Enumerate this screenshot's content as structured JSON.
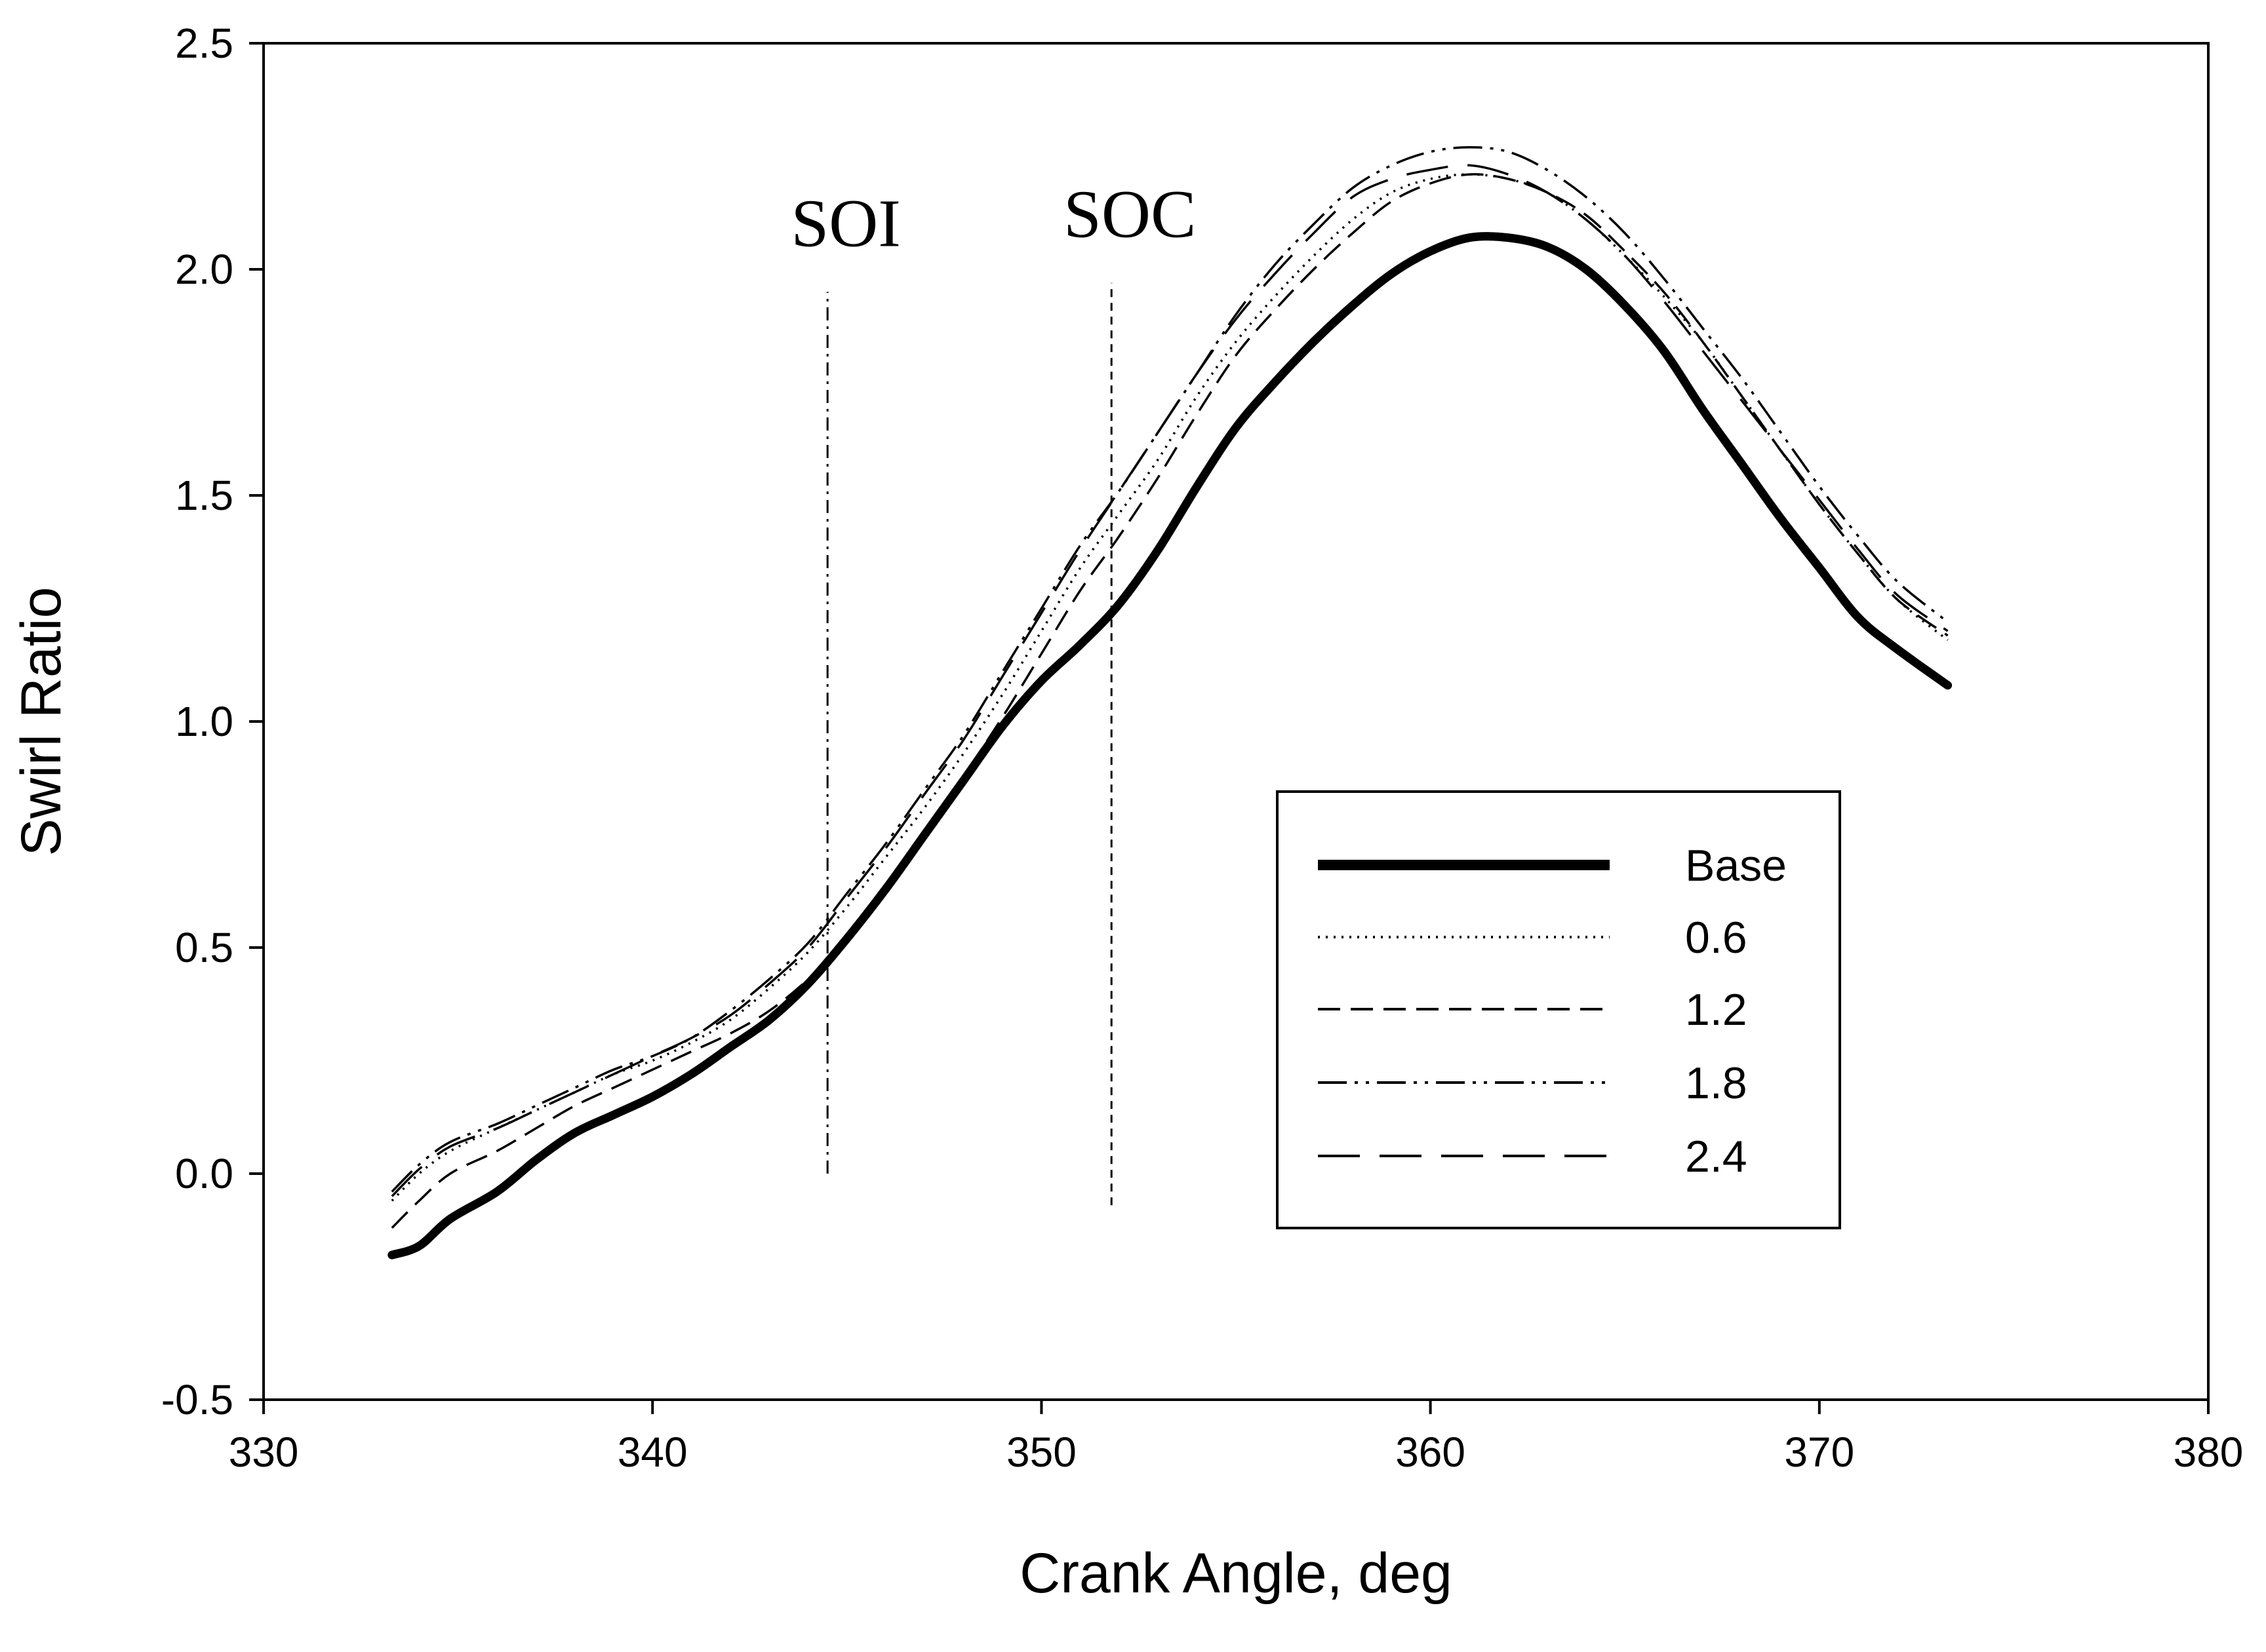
{
  "chart_data": {
    "type": "line",
    "title": "",
    "xlabel": "Crank Angle, deg",
    "ylabel": "Swirl Ratio",
    "xlim": [
      330,
      380
    ],
    "ylim": [
      -0.5,
      2.5
    ],
    "xticks": [
      330,
      340,
      350,
      360,
      370,
      380
    ],
    "yticks": [
      -0.5,
      0.0,
      0.5,
      1.0,
      1.5,
      2.0,
      2.5
    ],
    "xtick_labels": [
      "330",
      "340",
      "350",
      "360",
      "370",
      "380"
    ],
    "ytick_labels": [
      "-0.5",
      "0.0",
      "0.5",
      "1.0",
      "1.5",
      "2.0",
      "2.5"
    ],
    "grid": false,
    "legend_position": "lower-right",
    "annotations": [
      {
        "label": "SOI",
        "x": 344.5,
        "y_range": [
          0.0,
          1.95
        ],
        "style": "dash-dot"
      },
      {
        "label": "SOC",
        "x": 351.8,
        "y_range": [
          -0.07,
          1.97
        ],
        "style": "dashed"
      }
    ],
    "x": [
      333.3,
      334,
      334.8,
      336,
      337,
      338,
      339,
      340,
      341,
      342,
      343,
      344,
      345,
      346,
      347,
      348,
      349,
      350,
      351,
      352,
      353,
      354,
      355,
      356,
      357,
      358,
      359,
      360,
      361,
      362,
      363,
      364,
      365,
      366,
      367,
      368,
      369,
      370,
      371,
      372,
      373.3
    ],
    "series": [
      {
        "name": "Base",
        "values": [
          -0.18,
          -0.16,
          -0.1,
          -0.04,
          0.03,
          0.09,
          0.13,
          0.17,
          0.22,
          0.28,
          0.34,
          0.42,
          0.52,
          0.63,
          0.75,
          0.87,
          0.99,
          1.09,
          1.17,
          1.26,
          1.38,
          1.52,
          1.65,
          1.75,
          1.84,
          1.92,
          1.99,
          2.04,
          2.07,
          2.07,
          2.05,
          2.0,
          1.92,
          1.82,
          1.69,
          1.57,
          1.45,
          1.34,
          1.23,
          1.16,
          1.08
        ]
      },
      {
        "name": "0.6",
        "values": [
          -0.06,
          0.0,
          0.05,
          0.1,
          0.14,
          0.18,
          0.22,
          0.25,
          0.29,
          0.34,
          0.41,
          0.49,
          0.59,
          0.7,
          0.81,
          0.93,
          1.06,
          1.2,
          1.34,
          1.46,
          1.58,
          1.72,
          1.84,
          1.94,
          2.03,
          2.11,
          2.17,
          2.2,
          2.21,
          2.2,
          2.17,
          2.11,
          2.03,
          1.94,
          1.84,
          1.72,
          1.6,
          1.48,
          1.37,
          1.27,
          1.18
        ]
      },
      {
        "name": "1.2",
        "values": [
          -0.12,
          -0.06,
          0.0,
          0.05,
          0.1,
          0.15,
          0.19,
          0.23,
          0.27,
          0.31,
          0.36,
          0.43,
          0.52,
          0.64,
          0.76,
          0.88,
          1.01,
          1.15,
          1.29,
          1.41,
          1.54,
          1.68,
          1.81,
          1.91,
          2.0,
          2.08,
          2.15,
          2.19,
          2.21,
          2.2,
          2.17,
          2.12,
          2.04,
          1.95,
          1.84,
          1.72,
          1.6,
          1.48,
          1.37,
          1.27,
          1.19
        ]
      },
      {
        "name": "1.8",
        "values": [
          -0.04,
          0.02,
          0.07,
          0.11,
          0.15,
          0.19,
          0.23,
          0.26,
          0.3,
          0.36,
          0.43,
          0.51,
          0.62,
          0.73,
          0.85,
          0.97,
          1.11,
          1.25,
          1.39,
          1.51,
          1.64,
          1.77,
          1.9,
          2.01,
          2.1,
          2.18,
          2.23,
          2.26,
          2.27,
          2.26,
          2.22,
          2.16,
          2.08,
          1.98,
          1.87,
          1.76,
          1.64,
          1.52,
          1.41,
          1.31,
          1.22
        ]
      },
      {
        "name": "2.4",
        "values": [
          -0.05,
          0.01,
          0.06,
          0.1,
          0.14,
          0.18,
          0.22,
          0.26,
          0.3,
          0.35,
          0.42,
          0.5,
          0.61,
          0.72,
          0.84,
          0.96,
          1.1,
          1.24,
          1.38,
          1.51,
          1.64,
          1.77,
          1.89,
          1.99,
          2.08,
          2.16,
          2.2,
          2.22,
          2.23,
          2.21,
          2.17,
          2.11,
          2.03,
          1.93,
          1.82,
          1.71,
          1.6,
          1.49,
          1.38,
          1.28,
          1.2
        ]
      }
    ],
    "styles": {
      "Base": {
        "color": "#000000",
        "dash": "solid",
        "weight": "thick"
      },
      "0.6": {
        "color": "#000000",
        "dash": "dotted",
        "weight": "thin"
      },
      "1.2": {
        "color": "#000000",
        "dash": "short-dash",
        "weight": "thin"
      },
      "1.8": {
        "color": "#000000",
        "dash": "dash-dot-dot",
        "weight": "thin"
      },
      "2.4": {
        "color": "#000000",
        "dash": "long-dash",
        "weight": "thin"
      }
    }
  }
}
